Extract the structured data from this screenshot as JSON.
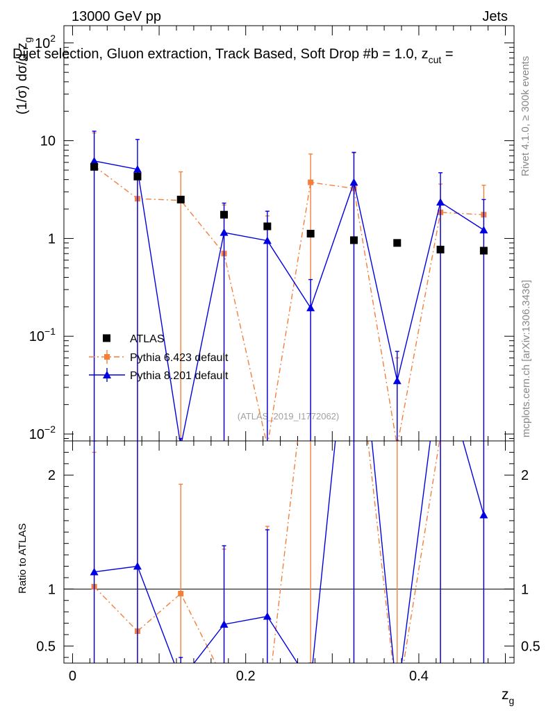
{
  "chart_data": {
    "type": "scatter",
    "header": {
      "left": "13000 GeV pp",
      "right": "Jets",
      "title": "Dijet selection, Gluon extraction, Track Based, Soft Drop #b = 1.0, z",
      "title_sub": "cut",
      "title_tail": " ="
    },
    "side_labels": {
      "rivet": "Rivet 4.1.0, ≥ 300k events",
      "mcplots": "mcplots.cern.ch [arXiv:1306.3436]"
    },
    "watermark": "(ATLAS_2019_I1772062)",
    "top_panel": {
      "ylabel": "(1/σ) dσ/d z",
      "ylabel_sub": "g",
      "yscale": "log",
      "ylim": [
        0.0085,
        150
      ],
      "ytick_labels": [
        {
          "base": "10",
          "exp": "−2",
          "value": 0.01
        },
        {
          "base": "10",
          "exp": "−1",
          "value": 0.1
        },
        {
          "base": "1",
          "exp": "",
          "value": 1
        },
        {
          "base": "10",
          "exp": "",
          "value": 10
        },
        {
          "base": "10",
          "exp": "2",
          "value": 100
        }
      ]
    },
    "ratio_panel": {
      "ylabel": "Ratio to ATLAS",
      "ylim": [
        0.35,
        2.3
      ],
      "ytick_labels": [
        {
          "label": "0.5",
          "value": 0.5
        },
        {
          "label": "1",
          "value": 1
        },
        {
          "label": "2",
          "value": 2
        }
      ]
    },
    "x": {
      "label": "z",
      "label_sub": "g",
      "xlim": [
        -0.01,
        0.51
      ],
      "ticks": [
        {
          "label": "0",
          "value": 0
        },
        {
          "label": "0.2",
          "value": 0.2
        },
        {
          "label": "0.4",
          "value": 0.4
        }
      ]
    },
    "legend": {
      "position": "lower-left",
      "entries": [
        "ATLAS",
        "Pythia 6.423 default",
        "Pythia 8.201 default"
      ]
    },
    "x_values": [
      0.025,
      0.075,
      0.125,
      0.175,
      0.225,
      0.275,
      0.325,
      0.375,
      0.425,
      0.475
    ],
    "series": [
      {
        "name": "ATLAS",
        "color": "#000000",
        "marker": "square",
        "values": [
          5.4,
          4.3,
          2.5,
          1.75,
          1.33,
          1.12,
          0.96,
          0.9,
          0.77,
          0.75
        ]
      },
      {
        "name": "Pythia 6.423 default",
        "color": "#f47f3b",
        "marker": "square",
        "line": "dashdot",
        "values": [
          5.5,
          2.55,
          2.45,
          0.7,
          0.0075,
          3.75,
          3.25,
          0.0075,
          1.85,
          1.75
        ],
        "err_up": [
          12,
          4.8,
          4.8,
          2.2,
          1.7,
          7.3,
          7.5,
          0.06,
          3.6,
          3.5
        ],
        "ratio": [
          1.02,
          0.63,
          0.96,
          0.2,
          0.0,
          3.3,
          3.4,
          0.0,
          2.35,
          2.32
        ],
        "ratio_err_up": [
          2.2,
          2.5,
          1.92,
          1.35,
          1.55,
          2.5,
          2.5,
          2.5,
          2.5,
          2.5
        ]
      },
      {
        "name": "Pythia 8.201 default",
        "color": "#0000e0",
        "marker": "triangle",
        "line": "solid",
        "values": [
          6.2,
          5.1,
          0.0075,
          1.15,
          0.95,
          0.195,
          3.75,
          0.035,
          2.35,
          1.22
        ],
        "err_up": [
          12.5,
          10.3,
          0.009,
          2.3,
          1.9,
          0.38,
          7.6,
          0.07,
          4.7,
          2.5
        ],
        "ratio": [
          1.15,
          1.2,
          0.2,
          0.69,
          0.76,
          0.17,
          3.9,
          0.04,
          3.0,
          1.65
        ],
        "ratio_err_up": [
          2.3,
          2.5,
          0.4,
          1.38,
          1.52,
          0.35,
          2.5,
          0.08,
          2.5,
          2.5
        ]
      }
    ]
  }
}
